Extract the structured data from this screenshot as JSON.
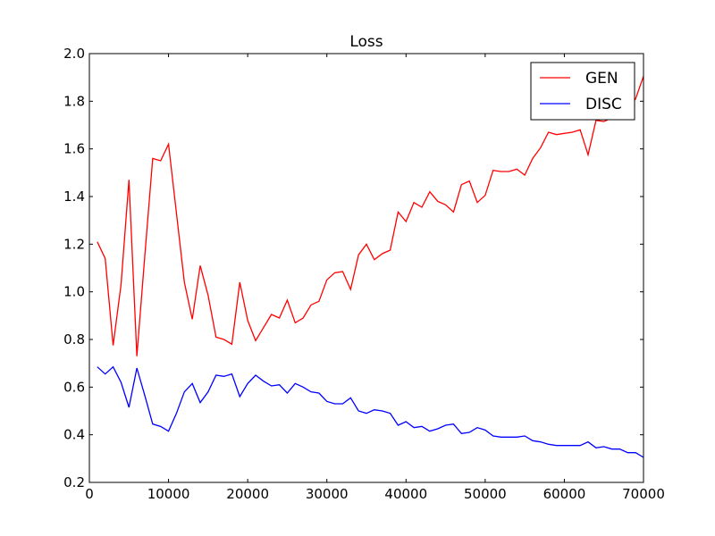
{
  "chart_data": {
    "type": "line",
    "title": "Loss",
    "xlabel": "",
    "ylabel": "",
    "xlim": [
      0,
      70000
    ],
    "ylim": [
      0.2,
      2.0
    ],
    "xticks": [
      0,
      10000,
      20000,
      30000,
      40000,
      50000,
      60000,
      70000
    ],
    "xtick_labels": [
      "0",
      "10000",
      "20000",
      "30000",
      "40000",
      "50000",
      "60000",
      "70000"
    ],
    "yticks": [
      0.2,
      0.4,
      0.6,
      0.8,
      1.0,
      1.2,
      1.4,
      1.6,
      1.8,
      2.0
    ],
    "ytick_labels": [
      "0.2",
      "0.4",
      "0.6",
      "0.8",
      "1.0",
      "1.2",
      "1.4",
      "1.6",
      "1.8",
      "2.0"
    ],
    "grid": false,
    "legend_position": "top-right",
    "x": [
      1000,
      2000,
      3000,
      4000,
      5000,
      6000,
      7000,
      8000,
      9000,
      10000,
      11000,
      12000,
      13000,
      14000,
      15000,
      16000,
      17000,
      18000,
      19000,
      20000,
      21000,
      22000,
      23000,
      24000,
      25000,
      26000,
      27000,
      28000,
      29000,
      30000,
      31000,
      32000,
      33000,
      34000,
      35000,
      36000,
      37000,
      38000,
      39000,
      40000,
      41000,
      42000,
      43000,
      44000,
      45000,
      46000,
      47000,
      48000,
      49000,
      50000,
      51000,
      52000,
      53000,
      54000,
      55000,
      56000,
      57000,
      58000,
      59000,
      60000,
      61000,
      62000,
      63000,
      64000,
      65000,
      66000,
      67000,
      68000,
      69000,
      70000
    ],
    "series": [
      {
        "name": "GEN",
        "color": "#ff0000",
        "values": [
          1.21,
          1.14,
          0.775,
          1.03,
          1.47,
          0.73,
          1.15,
          1.56,
          1.55,
          1.62,
          1.33,
          1.04,
          0.885,
          1.11,
          0.985,
          0.81,
          0.8,
          0.78,
          1.04,
          0.88,
          0.795,
          0.85,
          0.905,
          0.89,
          0.965,
          0.87,
          0.89,
          0.945,
          0.96,
          1.05,
          1.08,
          1.085,
          1.01,
          1.155,
          1.2,
          1.135,
          1.16,
          1.175,
          1.335,
          1.295,
          1.375,
          1.355,
          1.42,
          1.38,
          1.365,
          1.335,
          1.45,
          1.465,
          1.375,
          1.405,
          1.51,
          1.505,
          1.505,
          1.515,
          1.49,
          1.56,
          1.605,
          1.67,
          1.66,
          1.665,
          1.67,
          1.68,
          1.575,
          1.72,
          1.715,
          1.73,
          1.745,
          1.765,
          1.81,
          1.905
        ]
      },
      {
        "name": "DISC",
        "color": "#0000ff",
        "values": [
          0.685,
          0.655,
          0.685,
          0.62,
          0.515,
          0.68,
          0.565,
          0.445,
          0.435,
          0.415,
          0.49,
          0.58,
          0.615,
          0.535,
          0.58,
          0.65,
          0.645,
          0.655,
          0.56,
          0.615,
          0.65,
          0.625,
          0.605,
          0.61,
          0.575,
          0.615,
          0.6,
          0.58,
          0.575,
          0.54,
          0.53,
          0.53,
          0.555,
          0.5,
          0.49,
          0.505,
          0.5,
          0.49,
          0.44,
          0.455,
          0.43,
          0.435,
          0.415,
          0.425,
          0.44,
          0.445,
          0.405,
          0.41,
          0.43,
          0.42,
          0.395,
          0.39,
          0.39,
          0.39,
          0.395,
          0.375,
          0.37,
          0.36,
          0.355,
          0.355,
          0.355,
          0.355,
          0.37,
          0.345,
          0.35,
          0.34,
          0.34,
          0.325,
          0.325,
          0.305
        ]
      }
    ]
  }
}
